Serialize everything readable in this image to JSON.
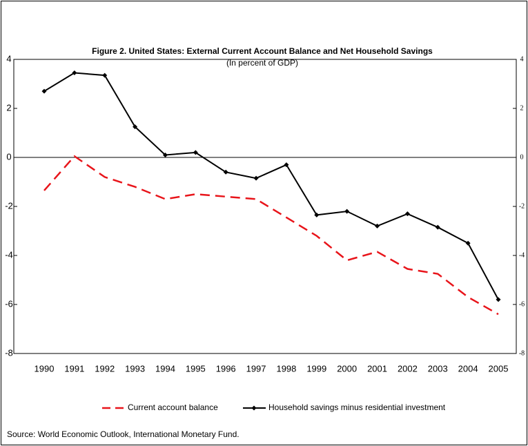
{
  "chart_data": {
    "type": "line",
    "title": "Figure 2. United States: External Current Account Balance and Net Household Savings",
    "subtitle": "(In percent of GDP)",
    "categories": [
      "1990",
      "1991",
      "1992",
      "1993",
      "1994",
      "1995",
      "1996",
      "1997",
      "1998",
      "1999",
      "2000",
      "2001",
      "2002",
      "2003",
      "2004",
      "2005"
    ],
    "series": [
      {
        "name": "Current account balance",
        "color": "#e8141a",
        "dashed": true,
        "values": [
          -1.35,
          0.05,
          -0.8,
          -1.2,
          -1.7,
          -1.5,
          -1.6,
          -1.7,
          -2.45,
          -3.2,
          -4.2,
          -3.85,
          -4.55,
          -4.75,
          -5.7,
          -6.4
        ]
      },
      {
        "name": "Household savings minus residential investment",
        "color": "#000000",
        "marker": "diamond",
        "values": [
          2.7,
          3.45,
          3.35,
          1.25,
          0.1,
          0.2,
          -0.6,
          -0.85,
          -0.3,
          -2.35,
          -2.2,
          -2.8,
          -2.3,
          -2.85,
          -3.5,
          -5.8
        ]
      }
    ],
    "ylim": [
      -8,
      4
    ],
    "yticks": [
      -8,
      -6,
      -4,
      -2,
      0,
      2,
      4
    ],
    "y2lim": [
      -8,
      4
    ],
    "y2ticks": [
      -8,
      -6,
      -4,
      -2,
      0,
      2,
      4
    ],
    "source": "Source: World Economic Outlook, International Monetary Fund."
  }
}
